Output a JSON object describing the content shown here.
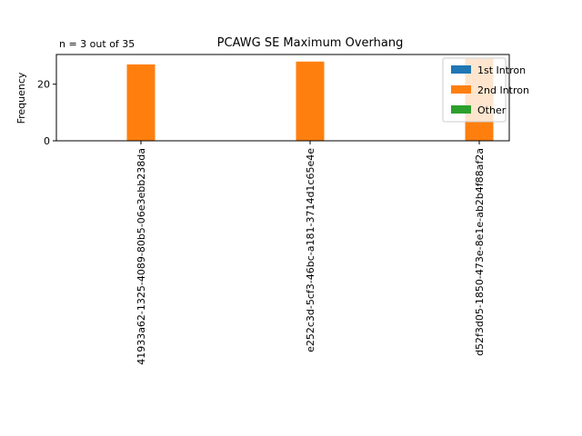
{
  "chart_data": {
    "type": "bar",
    "title": "PCAWG SE Maximum Overhang",
    "annotation": "n = 3 out of 35",
    "xlabel": "",
    "ylabel": "Frequency",
    "ylim": [
      0,
      30.5
    ],
    "yticks": [
      0,
      20
    ],
    "grid": false,
    "legend_position": "top-right",
    "categories": [
      "41933a62-1325-4089-80b5-06e3ebb238da",
      "e252c3d-5cf3-46bc-a181-3714d1c65e4e",
      "d52f3d05-1850-473e-8e1e-ab2b4f88af2a"
    ],
    "series": [
      {
        "name": "1st Intron",
        "color": "#1f77b4",
        "values": [
          0,
          0,
          0
        ]
      },
      {
        "name": "2nd Intron",
        "color": "#ff7f0e",
        "values": [
          27,
          28,
          29
        ]
      },
      {
        "name": "Other",
        "color": "#2ca02c",
        "values": [
          0,
          0,
          0
        ]
      }
    ]
  }
}
